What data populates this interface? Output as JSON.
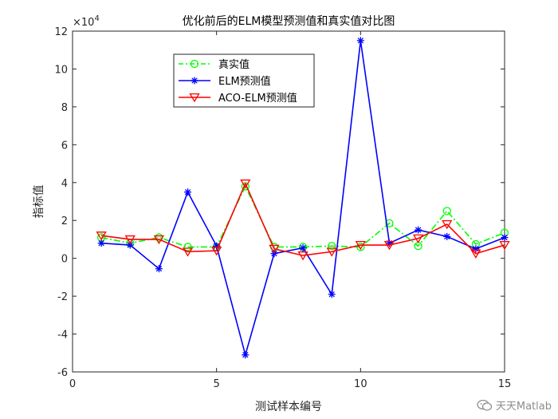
{
  "chart_data": {
    "type": "line",
    "title": "优化前后的ELM模型预测值和真实值对比图",
    "xlabel": "测试样本编号",
    "ylabel": "指标值",
    "exponent_label": "×10",
    "exponent_power": "4",
    "xlim": [
      0,
      15
    ],
    "ylim": [
      -60000,
      120000
    ],
    "xticks": [
      0,
      5,
      10,
      15
    ],
    "yticks": [
      -6,
      -4,
      -2,
      0,
      2,
      4,
      6,
      8,
      10,
      12
    ],
    "x": [
      1,
      2,
      3,
      4,
      5,
      6,
      7,
      8,
      9,
      10,
      11,
      12,
      13,
      14,
      15
    ],
    "grid": false,
    "legend_position": "top-left",
    "series": [
      {
        "name": "真实值",
        "color": "#00ff00",
        "marker": "circle",
        "line_style": "dash-dot",
        "values": [
          11000,
          8000,
          11000,
          6000,
          6000,
          38000,
          6000,
          6000,
          6500,
          6000,
          18500,
          6500,
          25000,
          7500,
          13500
        ]
      },
      {
        "name": "ELM预测值",
        "color": "#0000ff",
        "marker": "asterisk",
        "line_style": "solid",
        "values": [
          8000,
          7000,
          -5500,
          35000,
          6500,
          -51000,
          2500,
          5500,
          -19000,
          115000,
          8000,
          15000,
          11500,
          5000,
          11000
        ]
      },
      {
        "name": "ACO-ELM预测值",
        "color": "#ff0000",
        "marker": "triangle-down",
        "line_style": "solid",
        "values": [
          12000,
          10000,
          10000,
          3500,
          4000,
          39500,
          5000,
          1500,
          3500,
          7000,
          7000,
          10500,
          18000,
          2500,
          7000
        ]
      }
    ]
  },
  "watermark": {
    "icon": "wechat-icon",
    "text": "天天Matlab"
  }
}
